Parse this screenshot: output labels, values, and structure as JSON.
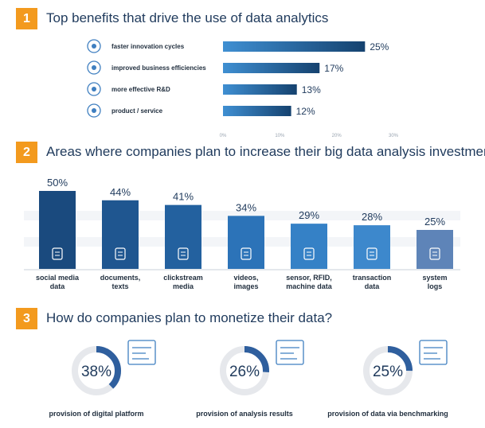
{
  "sections": [
    {
      "number": "1",
      "title": "Top benefits that drive the use of data analytics"
    },
    {
      "number": "2",
      "title": "Areas where companies plan to increase their big data analysis investment"
    },
    {
      "number": "3",
      "title": "How do companies plan to monetize their data?"
    }
  ],
  "colors": {
    "accent_orange": "#f39a1e",
    "bar_dark": "#1a4f82",
    "bar_light": "#3f8fd2",
    "ring_track": "#e6e8ec",
    "ring_fill": "#2f5f9e"
  },
  "chart_data": [
    {
      "type": "bar",
      "orientation": "horizontal",
      "title": "Top benefits that drive the use of data analytics",
      "categories": [
        "faster innovation cycles",
        "improved business efficiencies",
        "more effective R&D",
        "product / service"
      ],
      "values": [
        25,
        17,
        13,
        12
      ],
      "value_labels": [
        "25%",
        "17%",
        "13%",
        "12%"
      ],
      "icons": [
        "cycle-icon",
        "efficiency-icon",
        "research-icon",
        "product-icon"
      ],
      "xlim": [
        0,
        30
      ],
      "xticks": [
        "0%",
        "10%",
        "20%",
        "30%"
      ],
      "grid": false
    },
    {
      "type": "bar",
      "orientation": "vertical",
      "title": "Areas where companies plan to increase their big data analysis investment",
      "categories": [
        "social media data",
        "documents, texts",
        "clickstream media",
        "videos, images",
        "sensor, RFID, machine data",
        "transaction data",
        "system logs"
      ],
      "category_lines": [
        [
          "social media",
          "data"
        ],
        [
          "documents,",
          "texts"
        ],
        [
          "clickstream",
          "media"
        ],
        [
          "videos,",
          "images"
        ],
        [
          "sensor, RFID,",
          "machine data"
        ],
        [
          "transaction",
          "data"
        ],
        [
          "system",
          "logs"
        ]
      ],
      "values": [
        50,
        44,
        41,
        34,
        29,
        28,
        25
      ],
      "value_labels": [
        "50%",
        "44%",
        "41%",
        "34%",
        "29%",
        "28%",
        "25%"
      ],
      "icons": [
        "social-network-icon",
        "document-icon",
        "click-icon",
        "image-icon",
        "sensor-icon",
        "transaction-icon",
        "log-icon"
      ],
      "ylim": [
        0,
        50
      ]
    },
    {
      "type": "pie",
      "variant": "donut-rings",
      "title": "How do companies plan to monetize their data?",
      "categories": [
        "provision of digital platform",
        "provision of analysis results",
        "provision of data via benchmarking"
      ],
      "values": [
        38,
        26,
        25
      ],
      "value_labels": [
        "38%",
        "26%",
        "25%"
      ],
      "icons": [
        "platform-icon",
        "analysis-icon",
        "people-icon"
      ]
    }
  ]
}
